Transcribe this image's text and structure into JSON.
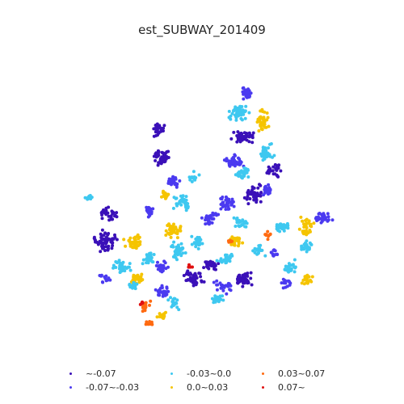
{
  "title": "est_SUBWAY_201409",
  "legend": [
    {
      "label": "~-0.07",
      "color": "#3a10b8"
    },
    {
      "label": "-0.07~-0.03",
      "color": "#4b3af0"
    },
    {
      "label": "-0.03~0.0",
      "color": "#3ec8f0"
    },
    {
      "label": "0.0~0.03",
      "color": "#f5c400"
    },
    {
      "label": "0.03~0.07",
      "color": "#ff6a10"
    },
    {
      "label": "0.07~",
      "color": "#e01010"
    }
  ]
}
